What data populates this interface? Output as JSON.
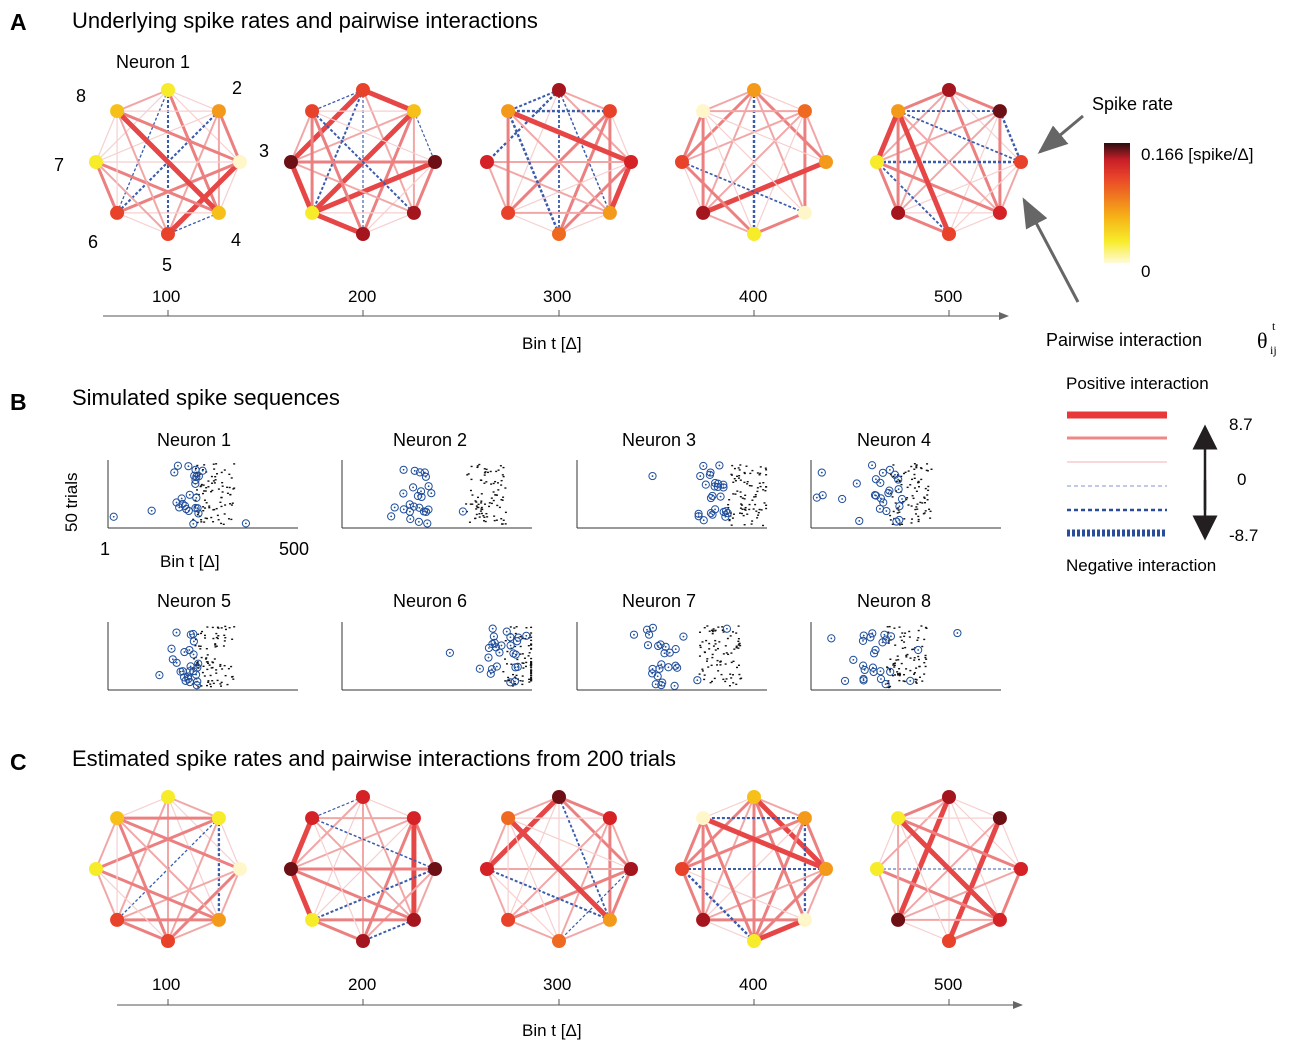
{
  "panel_a": {
    "letter": "A",
    "title": "Underlying spike rates and pairwise interactions",
    "neuron1_label": "Neuron 1",
    "node_numbers": [
      "2",
      "3",
      "4",
      "5",
      "6",
      "7",
      "8"
    ],
    "ticks": [
      "100",
      "200",
      "300",
      "400",
      "500"
    ],
    "axis_label": "Bin t [Δ]"
  },
  "panel_b": {
    "letter": "B",
    "title": "Simulated spike sequences",
    "neurons": [
      "Neuron 1",
      "Neuron 2",
      "Neuron 3",
      "Neuron 4",
      "Neuron 5",
      "Neuron 6",
      "Neuron 7",
      "Neuron 8"
    ],
    "ylabel": "50 trials",
    "xlabel": "Bin t [Δ]",
    "x_start": "1",
    "x_end": "500"
  },
  "panel_c": {
    "letter": "C",
    "title": "Estimated spike rates and pairwise interactions from 200 trials",
    "ticks": [
      "100",
      "200",
      "300",
      "400",
      "500"
    ],
    "axis_label": "Bin t [Δ]"
  },
  "legend": {
    "spike_rate_label": "Spike rate",
    "colorbar_max": "0.166 [spike/Δ]",
    "colorbar_min": "0",
    "pairwise_label": "Pairwise interaction",
    "theta_symbol": "θ",
    "theta_sub": "ij",
    "theta_sup": "t",
    "positive_label": "Positive interaction",
    "negative_label": "Negative interaction",
    "scale_max": "8.7",
    "scale_mid": "0",
    "scale_min": "-8.7"
  },
  "colors": {
    "positive_edge": "#e8383a",
    "negative_edge": "#2b4c9b",
    "spike_circle": "#1f4e9c",
    "axis": "#555555",
    "colormap": [
      "#fffbd9",
      "#f7ec2a",
      "#f6b417",
      "#f07a1f",
      "#e8422a",
      "#c81e28",
      "#2a0f10"
    ]
  }
}
